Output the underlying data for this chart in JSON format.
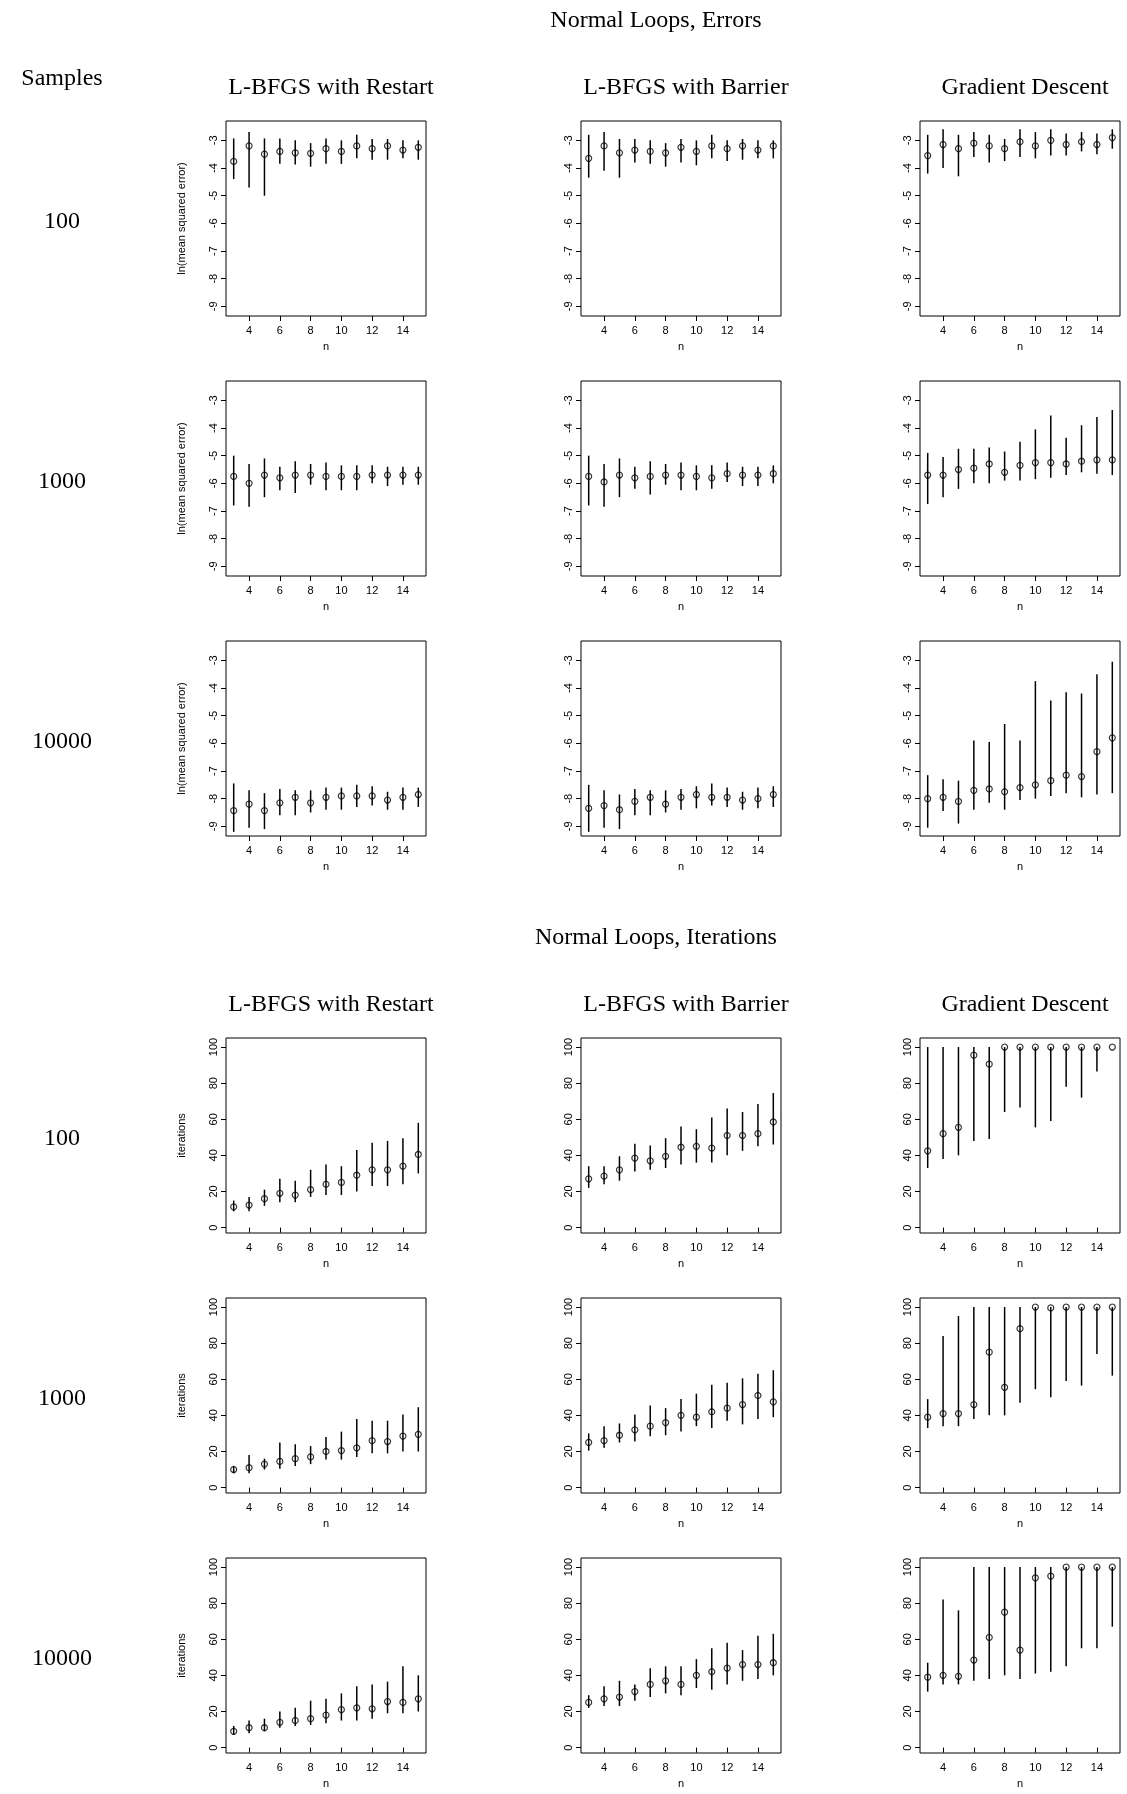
{
  "chart_data": [
    {
      "type": "other",
      "title": "Normal Loops, Errors",
      "annotations": [
        "Samples",
        "100",
        "1000",
        "10000"
      ]
    },
    {
      "type": "scatter",
      "title": "L-BFGS with Restart",
      "xlabel": "n",
      "ylabel": "ln(mean squared error)",
      "x": [
        3,
        4,
        5,
        6,
        7,
        8,
        9,
        10,
        11,
        12,
        13,
        14,
        15
      ],
      "xlim": [
        2.5,
        15.5
      ],
      "xticks": [
        4,
        6,
        8,
        10,
        12,
        14
      ],
      "ylim": [
        -9.35,
        -2.3
      ],
      "yticks": [
        -9,
        -8,
        -7,
        -6,
        -5,
        -4,
        -3
      ],
      "color": "#000000",
      "marker": "circle",
      "values": [
        -3.76,
        -3.2,
        -3.5,
        -3.4,
        -3.45,
        -3.47,
        -3.3,
        -3.4,
        -3.2,
        -3.3,
        -3.2,
        -3.35,
        -3.25
      ],
      "errors": [
        [
          -4.4,
          -2.93
        ],
        [
          -4.7,
          -2.7
        ],
        [
          -5.0,
          -2.93
        ],
        [
          -3.85,
          -2.93
        ],
        [
          -3.87,
          -3.0
        ],
        [
          -3.95,
          -3.1
        ],
        [
          -3.85,
          -2.93
        ],
        [
          -3.85,
          -3.0
        ],
        [
          -3.65,
          -2.8
        ],
        [
          -3.7,
          -2.95
        ],
        [
          -3.7,
          -2.95
        ],
        [
          -3.65,
          -3.0
        ],
        [
          -3.7,
          -3.0
        ]
      ]
    },
    {
      "type": "scatter",
      "title": "L-BFGS with Barrier",
      "xlabel": "n",
      "x": [
        3,
        4,
        5,
        6,
        7,
        8,
        9,
        10,
        11,
        12,
        13,
        14,
        15
      ],
      "xlim": [
        2.5,
        15.5
      ],
      "xticks": [
        4,
        6,
        8,
        10,
        12,
        14
      ],
      "ylim": [
        -9.35,
        -2.3
      ],
      "yticks": [
        -9,
        -8,
        -7,
        -6,
        -5,
        -4,
        -3
      ],
      "color": "#000000",
      "marker": "circle",
      "values": [
        -3.65,
        -3.2,
        -3.45,
        -3.35,
        -3.4,
        -3.45,
        -3.25,
        -3.4,
        -3.2,
        -3.3,
        -3.2,
        -3.35,
        -3.2
      ],
      "errors": [
        [
          -4.35,
          -2.8
        ],
        [
          -4.1,
          -2.7
        ],
        [
          -4.35,
          -2.95
        ],
        [
          -3.8,
          -2.95
        ],
        [
          -3.85,
          -3.0
        ],
        [
          -3.95,
          -3.1
        ],
        [
          -3.8,
          -2.95
        ],
        [
          -3.9,
          -3.0
        ],
        [
          -3.65,
          -2.8
        ],
        [
          -3.75,
          -3.0
        ],
        [
          -3.7,
          -2.95
        ],
        [
          -3.65,
          -3.0
        ],
        [
          -3.65,
          -3.0
        ]
      ]
    },
    {
      "type": "scatter",
      "title": "Gradient Descent",
      "xlabel": "n",
      "x": [
        3,
        4,
        5,
        6,
        7,
        8,
        9,
        10,
        11,
        12,
        13,
        14,
        15
      ],
      "xlim": [
        2.5,
        15.5
      ],
      "xticks": [
        4,
        6,
        8,
        10,
        12,
        14
      ],
      "ylim": [
        -9.35,
        -2.3
      ],
      "yticks": [
        -9,
        -8,
        -7,
        -6,
        -5,
        -4,
        -3
      ],
      "color": "#000000",
      "marker": "circle",
      "values": [
        -3.55,
        -3.15,
        -3.3,
        -3.1,
        -3.2,
        -3.3,
        -3.05,
        -3.2,
        -3.0,
        -3.15,
        -3.05,
        -3.15,
        -2.9
      ],
      "errors": [
        [
          -4.2,
          -2.8
        ],
        [
          -4.0,
          -2.6
        ],
        [
          -4.3,
          -2.8
        ],
        [
          -3.6,
          -2.7
        ],
        [
          -3.8,
          -2.8
        ],
        [
          -3.75,
          -2.95
        ],
        [
          -3.6,
          -2.6
        ],
        [
          -3.65,
          -2.7
        ],
        [
          -3.55,
          -2.6
        ],
        [
          -3.55,
          -2.75
        ],
        [
          -3.4,
          -2.7
        ],
        [
          -3.5,
          -2.75
        ],
        [
          -3.3,
          -2.6
        ]
      ]
    },
    {
      "type": "scatter",
      "xlabel": "n",
      "ylabel": "ln(mean squared error)",
      "x": [
        3,
        4,
        5,
        6,
        7,
        8,
        9,
        10,
        11,
        12,
        13,
        14,
        15
      ],
      "xlim": [
        2.5,
        15.5
      ],
      "xticks": [
        4,
        6,
        8,
        10,
        12,
        14
      ],
      "ylim": [
        -9.35,
        -2.3
      ],
      "yticks": [
        -9,
        -8,
        -7,
        -6,
        -5,
        -4,
        -3
      ],
      "color": "#000000",
      "marker": "circle",
      "values": [
        -5.75,
        -6.0,
        -5.7,
        -5.8,
        -5.7,
        -5.7,
        -5.75,
        -5.75,
        -5.75,
        -5.7,
        -5.7,
        -5.7,
        -5.7
      ],
      "errors": [
        [
          -6.8,
          -5.0
        ],
        [
          -6.85,
          -5.3
        ],
        [
          -6.5,
          -5.1
        ],
        [
          -6.25,
          -5.4
        ],
        [
          -6.35,
          -5.2
        ],
        [
          -6.05,
          -5.3
        ],
        [
          -6.25,
          -5.25
        ],
        [
          -6.25,
          -5.35
        ],
        [
          -6.25,
          -5.35
        ],
        [
          -6.0,
          -5.35
        ],
        [
          -6.1,
          -5.4
        ],
        [
          -6.05,
          -5.4
        ],
        [
          -6.05,
          -5.4
        ]
      ]
    },
    {
      "type": "scatter",
      "xlabel": "n",
      "x": [
        3,
        4,
        5,
        6,
        7,
        8,
        9,
        10,
        11,
        12,
        13,
        14,
        15
      ],
      "xlim": [
        2.5,
        15.5
      ],
      "xticks": [
        4,
        6,
        8,
        10,
        12,
        14
      ],
      "ylim": [
        -9.35,
        -2.3
      ],
      "yticks": [
        -9,
        -8,
        -7,
        -6,
        -5,
        -4,
        -3
      ],
      "color": "#000000",
      "marker": "circle",
      "values": [
        -5.75,
        -5.95,
        -5.7,
        -5.8,
        -5.75,
        -5.7,
        -5.7,
        -5.75,
        -5.8,
        -5.65,
        -5.7,
        -5.7,
        -5.65
      ],
      "errors": [
        [
          -6.8,
          -5.0
        ],
        [
          -6.85,
          -5.3
        ],
        [
          -6.5,
          -5.1
        ],
        [
          -6.2,
          -5.4
        ],
        [
          -6.4,
          -5.2
        ],
        [
          -6.05,
          -5.3
        ],
        [
          -6.25,
          -5.25
        ],
        [
          -6.25,
          -5.35
        ],
        [
          -6.2,
          -5.35
        ],
        [
          -5.95,
          -5.25
        ],
        [
          -6.1,
          -5.4
        ],
        [
          -6.1,
          -5.4
        ],
        [
          -6.0,
          -5.35
        ]
      ]
    },
    {
      "type": "scatter",
      "xlabel": "n",
      "x": [
        3,
        4,
        5,
        6,
        7,
        8,
        9,
        10,
        11,
        12,
        13,
        14,
        15
      ],
      "xlim": [
        2.5,
        15.5
      ],
      "xticks": [
        4,
        6,
        8,
        10,
        12,
        14
      ],
      "ylim": [
        -9.35,
        -2.3
      ],
      "yticks": [
        -9,
        -8,
        -7,
        -6,
        -5,
        -4,
        -3
      ],
      "color": "#000000",
      "marker": "circle",
      "values": [
        -5.7,
        -5.7,
        -5.5,
        -5.45,
        -5.3,
        -5.6,
        -5.35,
        -5.25,
        -5.25,
        -5.3,
        -5.2,
        -5.15,
        -5.15
      ],
      "errors": [
        [
          -6.75,
          -4.9
        ],
        [
          -6.5,
          -5.05
        ],
        [
          -6.2,
          -4.75
        ],
        [
          -6.0,
          -4.75
        ],
        [
          -6.0,
          -4.7
        ],
        [
          -5.9,
          -4.85
        ],
        [
          -5.9,
          -4.5
        ],
        [
          -5.85,
          -4.05
        ],
        [
          -5.8,
          -3.55
        ],
        [
          -5.7,
          -4.35
        ],
        [
          -5.6,
          -3.9
        ],
        [
          -5.65,
          -3.6
        ],
        [
          -5.7,
          -3.35
        ]
      ]
    },
    {
      "type": "scatter",
      "xlabel": "n",
      "ylabel": "ln(mean squared error)",
      "x": [
        3,
        4,
        5,
        6,
        7,
        8,
        9,
        10,
        11,
        12,
        13,
        14,
        15
      ],
      "xlim": [
        2.5,
        15.5
      ],
      "xticks": [
        4,
        6,
        8,
        10,
        12,
        14
      ],
      "ylim": [
        -9.35,
        -2.3
      ],
      "yticks": [
        -9,
        -8,
        -7,
        -6,
        -5,
        -4,
        -3
      ],
      "color": "#000000",
      "marker": "circle",
      "values": [
        -8.43,
        -8.2,
        -8.43,
        -8.15,
        -7.95,
        -8.15,
        -7.95,
        -7.9,
        -7.9,
        -7.9,
        -8.05,
        -7.95,
        -7.85
      ],
      "errors": [
        [
          -9.2,
          -7.45
        ],
        [
          -9.05,
          -7.7
        ],
        [
          -9.1,
          -7.8
        ],
        [
          -8.6,
          -7.65
        ],
        [
          -8.6,
          -7.7
        ],
        [
          -8.5,
          -7.7
        ],
        [
          -8.4,
          -7.6
        ],
        [
          -8.4,
          -7.6
        ],
        [
          -8.3,
          -7.5
        ],
        [
          -8.25,
          -7.55
        ],
        [
          -8.4,
          -7.75
        ],
        [
          -8.4,
          -7.6
        ],
        [
          -8.3,
          -7.6
        ]
      ]
    },
    {
      "type": "scatter",
      "xlabel": "n",
      "x": [
        3,
        4,
        5,
        6,
        7,
        8,
        9,
        10,
        11,
        12,
        13,
        14,
        15
      ],
      "xlim": [
        2.5,
        15.5
      ],
      "xticks": [
        4,
        6,
        8,
        10,
        12,
        14
      ],
      "ylim": [
        -9.35,
        -2.3
      ],
      "yticks": [
        -9,
        -8,
        -7,
        -6,
        -5,
        -4,
        -3
      ],
      "color": "#000000",
      "marker": "circle",
      "values": [
        -8.35,
        -8.25,
        -8.4,
        -8.1,
        -7.95,
        -8.2,
        -7.95,
        -7.85,
        -7.95,
        -7.95,
        -8.05,
        -8.0,
        -7.85
      ],
      "errors": [
        [
          -9.2,
          -7.5
        ],
        [
          -9.05,
          -7.7
        ],
        [
          -9.1,
          -7.85
        ],
        [
          -8.6,
          -7.65
        ],
        [
          -8.6,
          -7.7
        ],
        [
          -8.5,
          -7.7
        ],
        [
          -8.4,
          -7.65
        ],
        [
          -8.35,
          -7.55
        ],
        [
          -8.25,
          -7.45
        ],
        [
          -8.3,
          -7.6
        ],
        [
          -8.4,
          -7.75
        ],
        [
          -8.35,
          -7.6
        ],
        [
          -8.3,
          -7.55
        ]
      ]
    },
    {
      "type": "scatter",
      "xlabel": "n",
      "x": [
        3,
        4,
        5,
        6,
        7,
        8,
        9,
        10,
        11,
        12,
        13,
        14,
        15
      ],
      "xlim": [
        2.5,
        15.5
      ],
      "xticks": [
        4,
        6,
        8,
        10,
        12,
        14
      ],
      "ylim": [
        -9.35,
        -2.3
      ],
      "yticks": [
        -9,
        -8,
        -7,
        -6,
        -5,
        -4,
        -3
      ],
      "color": "#000000",
      "marker": "circle",
      "values": [
        -8.0,
        -7.95,
        -8.1,
        -7.7,
        -7.65,
        -7.75,
        -7.6,
        -7.5,
        -7.35,
        -7.15,
        -7.2,
        -6.3,
        -5.8
      ],
      "errors": [
        [
          -9.05,
          -7.15
        ],
        [
          -8.45,
          -7.3
        ],
        [
          -8.9,
          -7.35
        ],
        [
          -8.4,
          -5.9
        ],
        [
          -8.15,
          -5.95
        ],
        [
          -8.4,
          -5.3
        ],
        [
          -8.05,
          -5.9
        ],
        [
          -8.0,
          -3.75
        ],
        [
          -7.9,
          -4.45
        ],
        [
          -7.8,
          -4.15
        ],
        [
          -7.95,
          -4.2
        ],
        [
          -7.85,
          -3.5
        ],
        [
          -7.8,
          -3.05
        ]
      ]
    },
    {
      "type": "other",
      "title": "Normal Loops, Iterations",
      "annotations": [
        "100",
        "1000",
        "10000"
      ]
    },
    {
      "type": "scatter",
      "title": "L-BFGS with Restart",
      "xlabel": "n",
      "ylabel": "iterations",
      "x": [
        3,
        4,
        5,
        6,
        7,
        8,
        9,
        10,
        11,
        12,
        13,
        14,
        15
      ],
      "xlim": [
        2.5,
        15.5
      ],
      "xticks": [
        4,
        6,
        8,
        10,
        12,
        14
      ],
      "ylim": [
        -3,
        105
      ],
      "yticks": [
        0,
        20,
        40,
        60,
        80,
        100
      ],
      "color": "#000000",
      "marker": "circle",
      "values": [
        11.5,
        12.5,
        16,
        19,
        18,
        21,
        24,
        25,
        29,
        32,
        32,
        34,
        40.5
      ],
      "errors": [
        [
          9,
          15
        ],
        [
          9,
          17
        ],
        [
          12,
          21
        ],
        [
          14,
          27
        ],
        [
          14,
          26
        ],
        [
          17,
          32
        ],
        [
          18,
          35
        ],
        [
          18,
          34
        ],
        [
          20,
          43
        ],
        [
          23,
          47
        ],
        [
          23,
          48
        ],
        [
          24,
          49.5
        ],
        [
          30,
          58
        ]
      ]
    },
    {
      "type": "scatter",
      "title": "L-BFGS with Barrier",
      "xlabel": "n",
      "x": [
        3,
        4,
        5,
        6,
        7,
        8,
        9,
        10,
        11,
        12,
        13,
        14,
        15
      ],
      "xlim": [
        2.5,
        15.5
      ],
      "xticks": [
        4,
        6,
        8,
        10,
        12,
        14
      ],
      "ylim": [
        -3,
        105
      ],
      "yticks": [
        0,
        20,
        40,
        60,
        80,
        100
      ],
      "color": "#000000",
      "marker": "circle",
      "values": [
        27,
        28.5,
        32,
        38.5,
        37,
        39.5,
        44.5,
        45,
        44,
        51,
        51,
        52,
        58.5
      ],
      "errors": [
        [
          22,
          34
        ],
        [
          24,
          34
        ],
        [
          26,
          39.5
        ],
        [
          31,
          46.5
        ],
        [
          32,
          45.5
        ],
        [
          33,
          49.5
        ],
        [
          35,
          56
        ],
        [
          36,
          54.5
        ],
        [
          36,
          61
        ],
        [
          40,
          66
        ],
        [
          42.5,
          64
        ],
        [
          45,
          68.5
        ],
        [
          46,
          74.5
        ]
      ]
    },
    {
      "type": "scatter",
      "title": "Gradient Descent",
      "xlabel": "n",
      "x": [
        3,
        4,
        5,
        6,
        7,
        8,
        9,
        10,
        11,
        12,
        13,
        14,
        15
      ],
      "xlim": [
        2.5,
        15.5
      ],
      "xticks": [
        4,
        6,
        8,
        10,
        12,
        14
      ],
      "ylim": [
        -3,
        105
      ],
      "yticks": [
        0,
        20,
        40,
        60,
        80,
        100
      ],
      "color": "#000000",
      "marker": "circle",
      "values": [
        42.5,
        52,
        55.5,
        95.5,
        90.5,
        100,
        100,
        100,
        100,
        100,
        100,
        100,
        100
      ],
      "errors": [
        [
          33,
          100
        ],
        [
          38,
          100
        ],
        [
          40,
          100
        ],
        [
          48,
          100
        ],
        [
          49,
          100
        ],
        [
          64,
          100
        ],
        [
          66.5,
          100
        ],
        [
          55.5,
          100
        ],
        [
          59,
          100
        ],
        [
          78,
          100
        ],
        [
          72,
          100
        ],
        [
          86.5,
          100
        ],
        null
      ]
    },
    {
      "type": "scatter",
      "xlabel": "n",
      "ylabel": "iterations",
      "x": [
        3,
        4,
        5,
        6,
        7,
        8,
        9,
        10,
        11,
        12,
        13,
        14,
        15
      ],
      "xlim": [
        2.5,
        15.5
      ],
      "xticks": [
        4,
        6,
        8,
        10,
        12,
        14
      ],
      "ylim": [
        -3,
        105
      ],
      "yticks": [
        0,
        20,
        40,
        60,
        80,
        100
      ],
      "color": "#000000",
      "marker": "circle",
      "values": [
        10,
        11,
        13,
        14.5,
        16,
        17,
        20,
        20.5,
        22,
        26,
        25.5,
        28.5,
        29.5
      ],
      "errors": [
        [
          8,
          12
        ],
        [
          8,
          18
        ],
        [
          10,
          16
        ],
        [
          10.5,
          25
        ],
        [
          12,
          24
        ],
        [
          13,
          23
        ],
        [
          15.5,
          28
        ],
        [
          15.5,
          31
        ],
        [
          17,
          38
        ],
        [
          19,
          37
        ],
        [
          19,
          37
        ],
        [
          20,
          40.5
        ],
        [
          20,
          44.5
        ]
      ]
    },
    {
      "type": "scatter",
      "xlabel": "n",
      "x": [
        3,
        4,
        5,
        6,
        7,
        8,
        9,
        10,
        11,
        12,
        13,
        14,
        15
      ],
      "xlim": [
        2.5,
        15.5
      ],
      "xticks": [
        4,
        6,
        8,
        10,
        12,
        14
      ],
      "ylim": [
        -3,
        105
      ],
      "yticks": [
        0,
        20,
        40,
        60,
        80,
        100
      ],
      "color": "#000000",
      "marker": "circle",
      "values": [
        25,
        26,
        29,
        32,
        34,
        36,
        40,
        39,
        42,
        44,
        46,
        51,
        47.5
      ],
      "errors": [
        [
          20.5,
          30
        ],
        [
          22,
          34
        ],
        [
          25,
          35.5
        ],
        [
          25.5,
          40.5
        ],
        [
          28.5,
          45.5
        ],
        [
          29,
          44
        ],
        [
          31,
          49
        ],
        [
          34,
          52
        ],
        [
          33,
          57
        ],
        [
          37,
          58
        ],
        [
          35,
          60.5
        ],
        [
          38,
          63
        ],
        [
          39,
          65
        ]
      ]
    },
    {
      "type": "scatter",
      "xlabel": "n",
      "x": [
        3,
        4,
        5,
        6,
        7,
        8,
        9,
        10,
        11,
        12,
        13,
        14,
        15
      ],
      "xlim": [
        2.5,
        15.5
      ],
      "xticks": [
        4,
        6,
        8,
        10,
        12,
        14
      ],
      "ylim": [
        -3,
        105
      ],
      "yticks": [
        0,
        20,
        40,
        60,
        80,
        100
      ],
      "color": "#000000",
      "marker": "circle",
      "values": [
        39,
        41,
        41,
        46,
        75,
        55.5,
        88,
        100,
        99.5,
        100,
        100,
        100,
        100
      ],
      "errors": [
        [
          33,
          49
        ],
        [
          34,
          84
        ],
        [
          34,
          95
        ],
        [
          38,
          100
        ],
        [
          40,
          100
        ],
        [
          40,
          100
        ],
        [
          47,
          100
        ],
        [
          54.5,
          100
        ],
        [
          50,
          100
        ],
        [
          59,
          100
        ],
        [
          56.5,
          100
        ],
        [
          74,
          100
        ],
        [
          62,
          100
        ]
      ]
    },
    {
      "type": "scatter",
      "xlabel": "n",
      "ylabel": "iterations",
      "x": [
        3,
        4,
        5,
        6,
        7,
        8,
        9,
        10,
        11,
        12,
        13,
        14,
        15
      ],
      "xlim": [
        2.5,
        15.5
      ],
      "xticks": [
        4,
        6,
        8,
        10,
        12,
        14
      ],
      "ylim": [
        -3,
        105
      ],
      "yticks": [
        0,
        20,
        40,
        60,
        80,
        100
      ],
      "color": "#000000",
      "marker": "circle",
      "values": [
        9,
        11,
        11,
        14,
        15,
        16,
        18,
        21,
        22,
        21.5,
        25.5,
        25,
        27
      ],
      "errors": [
        [
          7,
          12
        ],
        [
          8,
          15
        ],
        [
          9,
          16
        ],
        [
          11,
          20
        ],
        [
          12,
          22
        ],
        [
          12.5,
          26
        ],
        [
          13.5,
          27
        ],
        [
          15,
          30
        ],
        [
          15,
          34
        ],
        [
          16,
          35
        ],
        [
          19,
          36.5
        ],
        [
          19,
          45
        ],
        [
          20,
          40
        ]
      ]
    },
    {
      "type": "scatter",
      "xlabel": "n",
      "x": [
        3,
        4,
        5,
        6,
        7,
        8,
        9,
        10,
        11,
        12,
        13,
        14,
        15
      ],
      "xlim": [
        2.5,
        15.5
      ],
      "xticks": [
        4,
        6,
        8,
        10,
        12,
        14
      ],
      "ylim": [
        -3,
        105
      ],
      "yticks": [
        0,
        20,
        40,
        60,
        80,
        100
      ],
      "color": "#000000",
      "marker": "circle",
      "values": [
        25,
        27,
        28,
        31,
        35,
        37,
        35,
        40,
        42,
        44,
        46,
        46,
        47
      ],
      "errors": [
        [
          22,
          29
        ],
        [
          23,
          34
        ],
        [
          23,
          37
        ],
        [
          26,
          35
        ],
        [
          28,
          44
        ],
        [
          30,
          45
        ],
        [
          29,
          45
        ],
        [
          33,
          49
        ],
        [
          32,
          55
        ],
        [
          35,
          58
        ],
        [
          37,
          54
        ],
        [
          38,
          62
        ],
        [
          40,
          63
        ]
      ]
    },
    {
      "type": "scatter",
      "xlabel": "n",
      "x": [
        3,
        4,
        5,
        6,
        7,
        8,
        9,
        10,
        11,
        12,
        13,
        14,
        15
      ],
      "xlim": [
        2.5,
        15.5
      ],
      "xticks": [
        4,
        6,
        8,
        10,
        12,
        14
      ],
      "ylim": [
        -3,
        105
      ],
      "yticks": [
        0,
        20,
        40,
        60,
        80,
        100
      ],
      "color": "#000000",
      "marker": "circle",
      "values": [
        39,
        40,
        39.5,
        48.5,
        61,
        75,
        54,
        94,
        95,
        100,
        100,
        100,
        100
      ],
      "errors": [
        [
          31,
          47
        ],
        [
          35,
          82
        ],
        [
          35,
          76
        ],
        [
          37,
          100
        ],
        [
          38,
          100
        ],
        [
          40,
          100
        ],
        [
          38,
          100
        ],
        [
          41,
          100
        ],
        [
          42,
          100
        ],
        [
          45,
          100
        ],
        [
          55,
          100
        ],
        [
          55,
          100
        ],
        [
          67,
          100
        ]
      ]
    }
  ]
}
